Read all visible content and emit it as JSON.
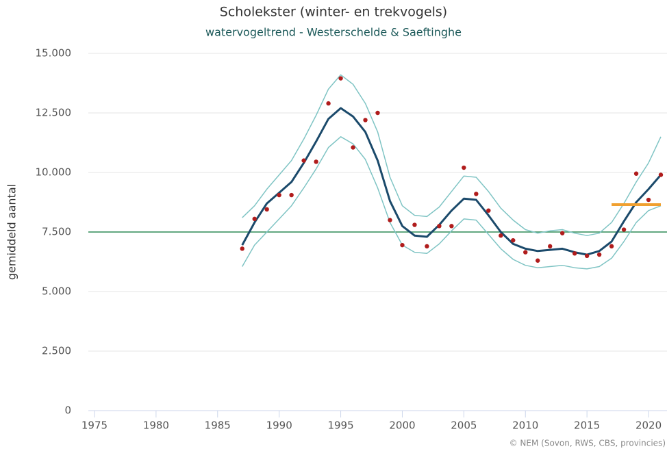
{
  "chart_data": {
    "type": "line",
    "title": "Scholekster (winter- en trekvogels)",
    "subtitle": "watervogeltrend - Westerschelde & Saeftinghe",
    "y_label": "gemiddeld aantal",
    "credit": "© NEM (Sovon, RWS, CBS, provincies)",
    "x": [
      1987,
      1988,
      1989,
      1990,
      1991,
      1992,
      1993,
      1994,
      1995,
      1996,
      1997,
      1998,
      1999,
      2000,
      2001,
      2002,
      2003,
      2004,
      2005,
      2006,
      2007,
      2008,
      2009,
      2010,
      2011,
      2012,
      2013,
      2014,
      2015,
      2016,
      2017,
      2018,
      2019,
      2020,
      2021
    ],
    "series": [
      {
        "color": "#7fc4c4",
        "values": [
          8100,
          8600,
          9300,
          9900,
          10500,
          11400,
          12400,
          13500,
          14100,
          13700,
          12900,
          11700,
          9800,
          8600,
          8200,
          8150,
          8550,
          9200,
          9850,
          9800,
          9200,
          8500,
          8000,
          7600,
          7450,
          7550,
          7600,
          7450,
          7350,
          7450,
          7900,
          8700,
          9600,
          10400,
          11500
        ]
      },
      {
        "color": "#7fc4c4",
        "values": [
          6050,
          6950,
          7500,
          8050,
          8600,
          9350,
          10150,
          11050,
          11500,
          11200,
          10550,
          9350,
          7900,
          6950,
          6650,
          6600,
          7000,
          7550,
          8050,
          8000,
          7400,
          6800,
          6350,
          6100,
          6000,
          6050,
          6100,
          6000,
          5950,
          6050,
          6400,
          7100,
          7900,
          8400,
          8600
        ]
      },
      {
        "color": "#1b4a6b",
        "values": [
          6950,
          7900,
          8700,
          9150,
          9600,
          10400,
          11300,
          12250,
          12700,
          12350,
          11700,
          10500,
          8800,
          7750,
          7350,
          7300,
          7800,
          8400,
          8900,
          8850,
          8200,
          7500,
          7000,
          6800,
          6700,
          6750,
          6800,
          6650,
          6550,
          6700,
          7100,
          7950,
          8750,
          9300,
          9900
        ]
      },
      {
        "color": "#b01c1c",
        "marker": true,
        "values": [
          6800,
          8050,
          8450,
          9050,
          9050,
          10500,
          10450,
          12900,
          13950,
          11050,
          12200,
          12500,
          8000,
          6950,
          7800,
          6900,
          7750,
          7750,
          10200,
          9100,
          8400,
          7350,
          7150,
          6650,
          6300,
          6900,
          7450,
          6600,
          6500,
          6550,
          6900,
          7600,
          9950,
          8850,
          9900
        ]
      }
    ],
    "reference_line": {
      "value": 7500,
      "color": "#2e8b57"
    },
    "reference_segment": {
      "x": [
        2017,
        2021
      ],
      "value": 8650,
      "color": "#f0a030"
    },
    "xlim": [
      1974.5,
      2021.5
    ],
    "xticks": [
      1975,
      1980,
      1985,
      1990,
      1995,
      2000,
      2005,
      2010,
      2015,
      2020
    ],
    "ylim": [
      0,
      15000
    ],
    "yticks": [
      0,
      {
        "value": 2500,
        "label": "2.500"
      },
      {
        "value": 5000,
        "label": "5.000"
      },
      {
        "value": 7500,
        "label": "7.500"
      },
      {
        "value": 10000,
        "label": "10.000"
      },
      {
        "value": 12500,
        "label": "12.500"
      },
      {
        "value": 15000,
        "label": "15.000"
      }
    ],
    "grid": true
  }
}
